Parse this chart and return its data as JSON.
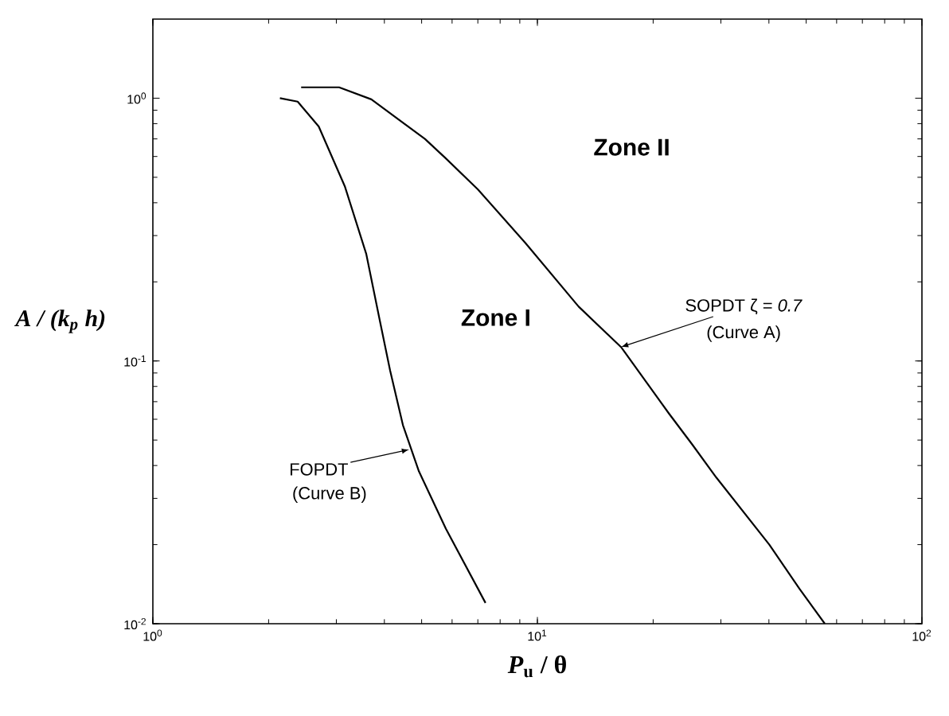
{
  "chart_data": {
    "type": "line",
    "xlabel": "*P*$_{u}$ / θ",
    "ylabel": "A / (k$_{p}$ h)",
    "log": "xy",
    "xlim": [
      1,
      100
    ],
    "ylim": [
      0.01,
      2
    ],
    "xticks": [
      {
        "value": 1,
        "label": "10$^{0}$"
      },
      {
        "value": 10,
        "label": "10$^{1}$"
      },
      {
        "value": 100,
        "label": "10$^{2}$"
      }
    ],
    "yticks": [
      {
        "value": 0.01,
        "label": "10$^{-2}$"
      },
      {
        "value": 0.1,
        "label": "10$^{-1}$"
      },
      {
        "value": 1,
        "label": "10$^{0}$"
      }
    ],
    "grid": false,
    "marker": "none",
    "line_style": "solid",
    "series": [
      {
        "color": "#000000",
        "x": [
          2.43,
          3.05,
          3.7,
          5.1,
          5.78,
          7.0,
          9.31,
          12.8,
          16.5,
          22.0,
          25.3,
          29.2,
          40.1,
          48,
          55.9
        ],
        "values": [
          1.1,
          1.1,
          0.99,
          0.7,
          0.59,
          0.45,
          0.281,
          0.161,
          0.113,
          0.063,
          0.048,
          0.036,
          0.02,
          0.0136,
          0.01
        ]
      },
      {
        "color": "#000000",
        "x": [
          2.14,
          2.38,
          2.7,
          3.16,
          3.59,
          3.88,
          4.14,
          4.47,
          4.92,
          5.78,
          7.33
        ],
        "values": [
          1.0,
          0.97,
          0.78,
          0.46,
          0.255,
          0.146,
          0.092,
          0.057,
          0.038,
          0.023,
          0.012
        ]
      }
    ],
    "annotations": [
      "Zone II",
      "Zone I",
      {
        "text": "SOPDT  ζ = *0.7*",
        "x": 16.5,
        "y": 0.113
      },
      "(Curve A)",
      {
        "text": "FOPDT",
        "x": 4.64,
        "y": 0.046
      },
      "(Curve B)"
    ]
  }
}
